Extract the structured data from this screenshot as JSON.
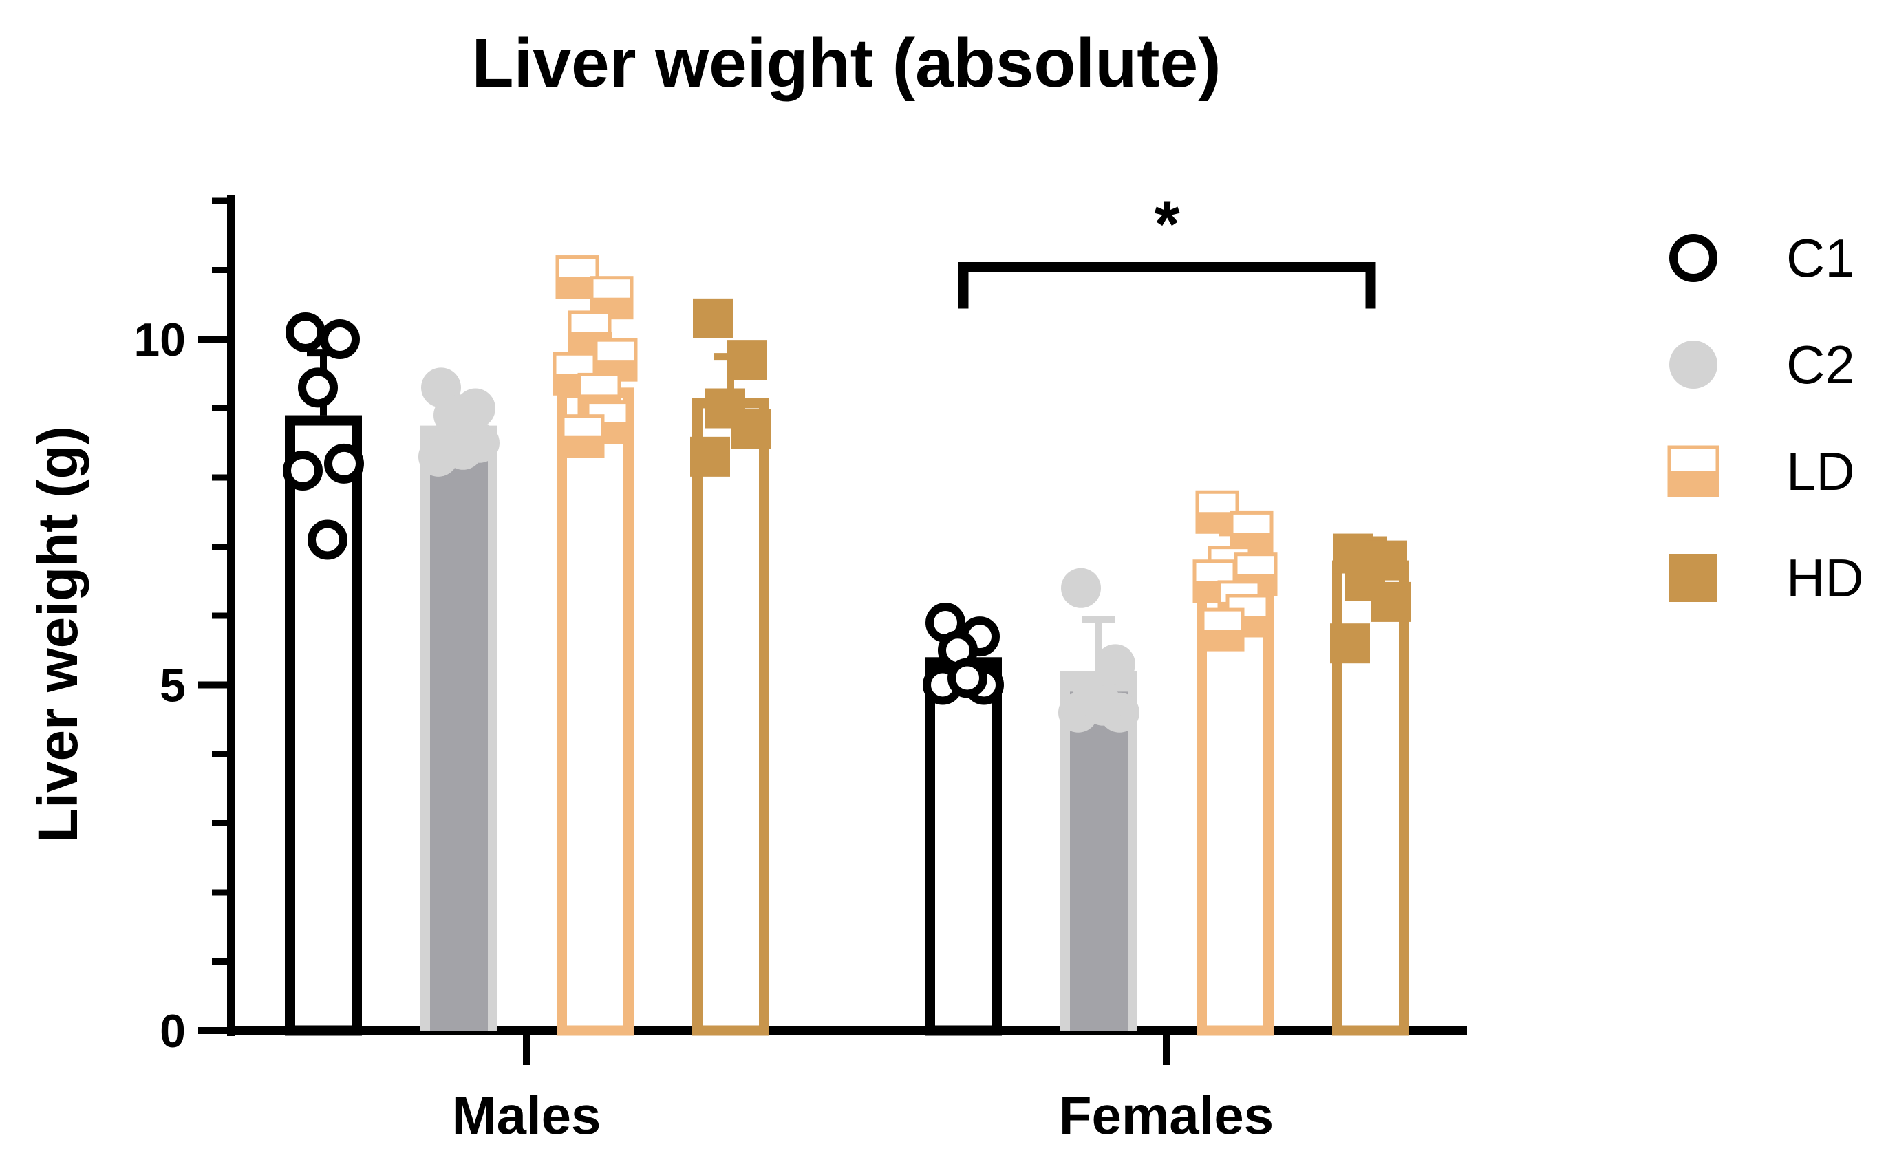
{
  "chart_data": {
    "type": "bar",
    "title": "Liver weight (absolute)",
    "xlabel": "",
    "ylabel": "Liver weight (g)",
    "ylim": [
      0,
      12
    ],
    "yticks_major": [
      0,
      5,
      10
    ],
    "yticks_minor": [
      1,
      2,
      3,
      4,
      6,
      7,
      8,
      9,
      11,
      12
    ],
    "categories": [
      "Males",
      "Females"
    ],
    "grid": false,
    "legend_position": "right",
    "series": [
      {
        "name": "C1",
        "marker": "open-circle",
        "bar_fill": "#ffffff",
        "edge_color": "#000000",
        "point_color": "#000000",
        "values": [
          8.9,
          5.4
        ],
        "error": [
          0.9,
          0.4
        ],
        "points": [
          [
            10.1,
            10.0,
            9.3,
            8.2,
            8.1,
            7.1
          ],
          [
            5.9,
            5.7,
            5.5,
            5.0,
            5.0,
            5.1
          ]
        ]
      },
      {
        "name": "C2",
        "marker": "filled-circle",
        "bar_fill": "#a3a3a8",
        "edge_color": "#d3d3d3",
        "point_color": "#d3d3d3",
        "values": [
          8.75,
          5.2
        ],
        "error": [
          0.4,
          0.75
        ],
        "points": [
          [
            9.3,
            9.0,
            8.9,
            8.5,
            8.3,
            8.4
          ],
          [
            6.4,
            5.3,
            4.9,
            4.6,
            4.6,
            4.7
          ]
        ]
      },
      {
        "name": "LD",
        "marker": "half-filled-square",
        "bar_fill": "#ffffff",
        "edge_color": "#f2b87e",
        "point_color": "#f2b87e",
        "values": [
          9.3,
          6.65
        ],
        "error": [
          0.75,
          0.55
        ],
        "points": [
          [
            10.9,
            10.6,
            10.1,
            9.7,
            9.5,
            9.2,
            8.8,
            8.6
          ],
          [
            7.5,
            7.2,
            6.7,
            6.6,
            6.5,
            6.2,
            6.0,
            5.8
          ]
        ]
      },
      {
        "name": "HD",
        "marker": "filled-square",
        "bar_fill": "#ffffff",
        "edge_color": "#c8954c",
        "point_color": "#c8954c",
        "values": [
          9.15,
          6.8
        ],
        "error": [
          0.6,
          0.3
        ],
        "points": [
          [
            10.3,
            9.7,
            9.0,
            8.7,
            8.3
          ],
          [
            6.9,
            6.8,
            6.5,
            6.2,
            5.6
          ]
        ]
      }
    ],
    "annotations": [
      {
        "text": "*",
        "type": "significance-bracket",
        "category": "Females",
        "from_series": "C1",
        "to_series": "HD",
        "y": 11.1
      }
    ]
  }
}
